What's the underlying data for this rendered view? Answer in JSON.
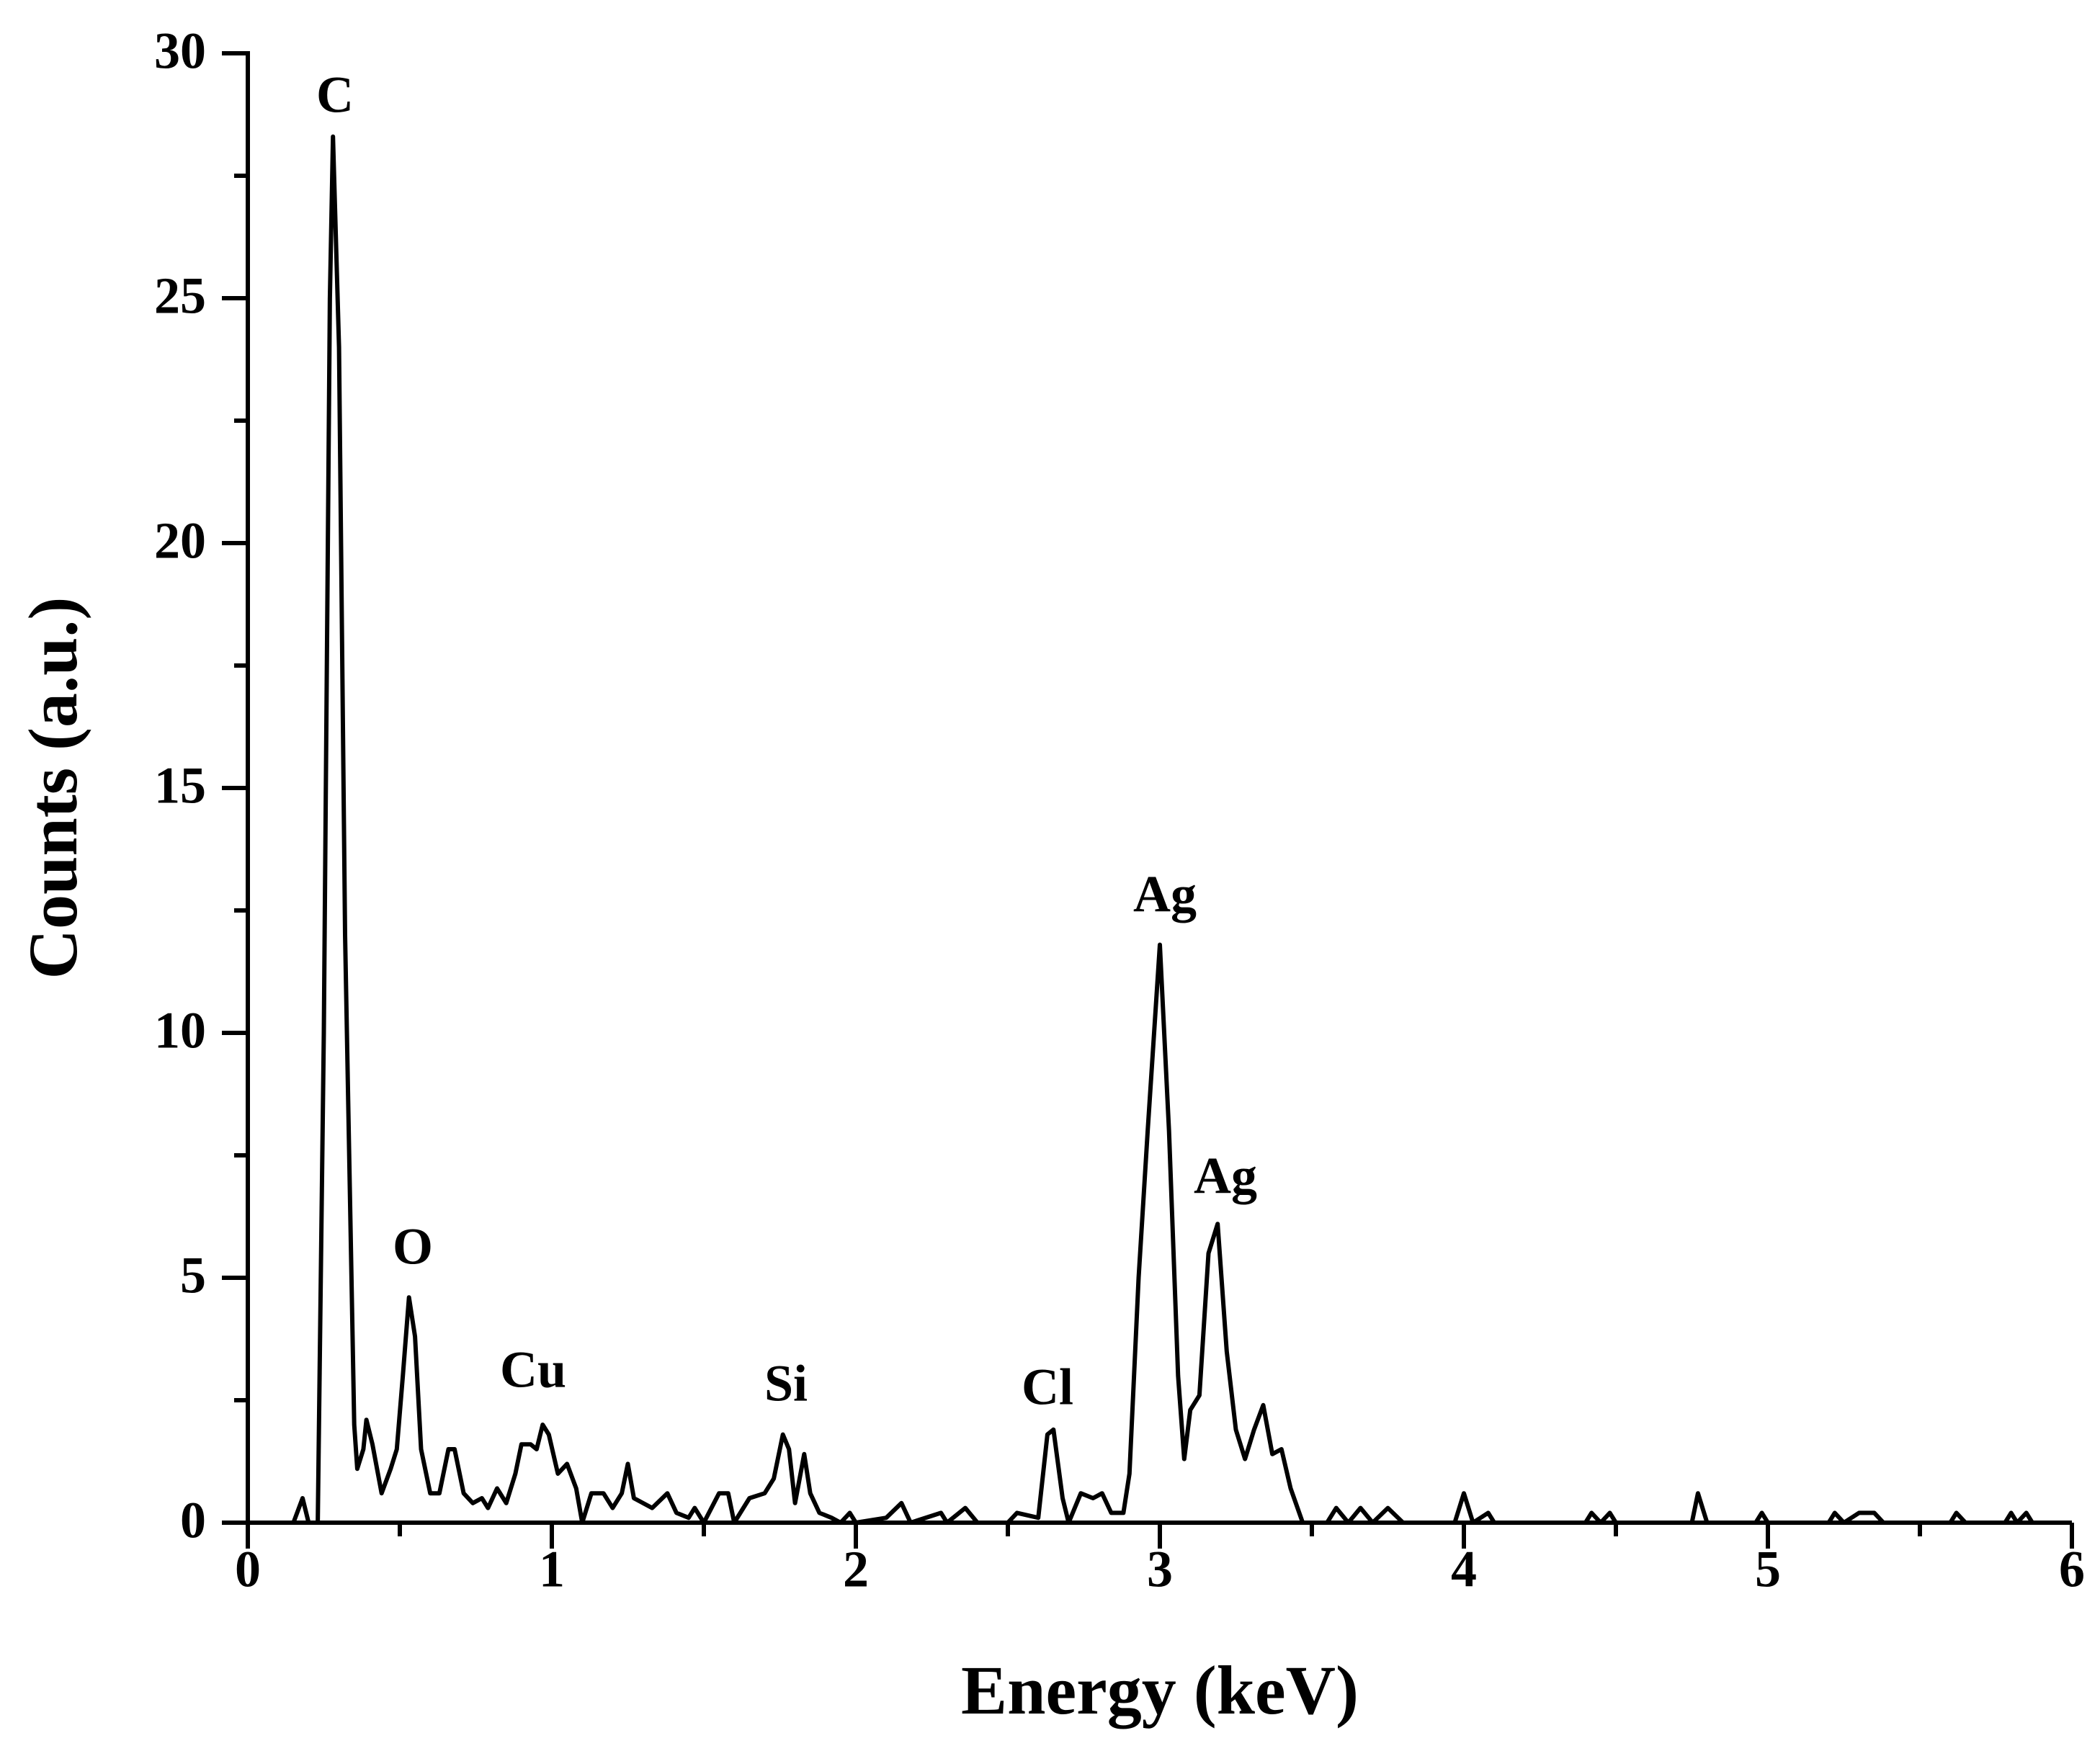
{
  "chart_data": {
    "type": "line",
    "x_label": "Energy (keV)",
    "y_label": "Counts (a.u.)",
    "xlim": [
      0,
      6
    ],
    "xticks": [
      0,
      1,
      2,
      3,
      4,
      5,
      6
    ],
    "ylim": [
      0,
      30
    ],
    "yticks": [
      0,
      5,
      10,
      15,
      20,
      25,
      30
    ],
    "annotations": [
      {
        "text": "C"
      },
      {
        "text": "O"
      },
      {
        "text": "Cu"
      },
      {
        "text": "Si"
      },
      {
        "text": "Cl"
      },
      {
        "text": "Ag"
      },
      {
        "text": "Ag"
      }
    ],
    "series": [
      {
        "color": "#000000",
        "x": [
          0,
          0.15,
          0.18,
          0.2,
          0.23,
          0.25,
          0.27,
          0.28,
          0.3,
          0.32,
          0.35,
          0.36,
          0.38,
          0.39,
          0.41,
          0.44,
          0.47,
          0.49,
          0.51,
          0.53,
          0.55,
          0.57,
          0.6,
          0.63,
          0.66,
          0.68,
          0.71,
          0.74,
          0.77,
          0.79,
          0.82,
          0.85,
          0.88,
          0.9,
          0.93,
          0.95,
          0.97,
          0.99,
          1.02,
          1.05,
          1.08,
          1.1,
          1.13,
          1.17,
          1.2,
          1.23,
          1.25,
          1.27,
          1.33,
          1.38,
          1.41,
          1.45,
          1.47,
          1.5,
          1.55,
          1.58,
          1.6,
          1.65,
          1.7,
          1.73,
          1.76,
          1.78,
          1.8,
          1.83,
          1.85,
          1.88,
          1.92,
          1.95,
          1.98,
          2.0,
          2.1,
          2.15,
          2.18,
          2.28,
          2.3,
          2.36,
          2.4,
          2.5,
          2.53,
          2.6,
          2.63,
          2.65,
          2.68,
          2.7,
          2.74,
          2.78,
          2.81,
          2.84,
          2.88,
          2.9,
          2.93,
          2.96,
          3.0,
          3.03,
          3.06,
          3.08,
          3.1,
          3.13,
          3.16,
          3.19,
          3.22,
          3.25,
          3.28,
          3.31,
          3.34,
          3.37,
          3.4,
          3.43,
          3.47,
          3.55,
          3.58,
          3.62,
          3.66,
          3.7,
          3.75,
          3.8,
          3.97,
          4.0,
          4.03,
          4.08,
          4.1,
          4.4,
          4.42,
          4.45,
          4.48,
          4.5,
          4.75,
          4.77,
          4.8,
          4.96,
          4.98,
          5.0,
          5.2,
          5.22,
          5.25,
          5.3,
          5.35,
          5.38,
          5.6,
          5.62,
          5.65,
          5.78,
          5.8,
          5.82,
          5.85,
          5.87
        ],
        "values": [
          0,
          0,
          0.5,
          0,
          0,
          10,
          25,
          28.3,
          24,
          12,
          2,
          1.1,
          1.5,
          2.1,
          1.6,
          0.6,
          1.1,
          1.5,
          3,
          4.6,
          3.8,
          1.5,
          0.6,
          0.6,
          1.5,
          1.5,
          0.6,
          0.4,
          0.5,
          0.3,
          0.7,
          0.4,
          1.0,
          1.6,
          1.6,
          1.5,
          2.0,
          1.8,
          1.0,
          1.2,
          0.7,
          0,
          0.6,
          0.6,
          0.3,
          0.6,
          1.2,
          0.5,
          0.3,
          0.6,
          0.2,
          0.1,
          0.3,
          0,
          0.6,
          0.6,
          0,
          0.5,
          0.6,
          0.9,
          1.8,
          1.5,
          0.4,
          1.4,
          0.6,
          0.2,
          0.1,
          0,
          0.2,
          0,
          0.1,
          0.4,
          0,
          0.2,
          0,
          0.3,
          0,
          0,
          0.2,
          0.1,
          1.8,
          1.9,
          0.5,
          0,
          0.6,
          0.5,
          0.6,
          0.2,
          0.2,
          1,
          5,
          8,
          11.8,
          8,
          3,
          1.3,
          2.3,
          2.6,
          5.5,
          6.1,
          3.5,
          1.9,
          1.3,
          1.9,
          2.4,
          1.4,
          1.5,
          0.7,
          0,
          0,
          0.3,
          0,
          0.3,
          0,
          0.3,
          0,
          0,
          0.6,
          0,
          0.2,
          0,
          0,
          0.2,
          0,
          0.2,
          0,
          0,
          0.6,
          0,
          0,
          0.2,
          0,
          0,
          0.2,
          0,
          0.2,
          0.2,
          0,
          0,
          0.2,
          0,
          0,
          0.2,
          0,
          0.2,
          0
        ]
      }
    ]
  }
}
